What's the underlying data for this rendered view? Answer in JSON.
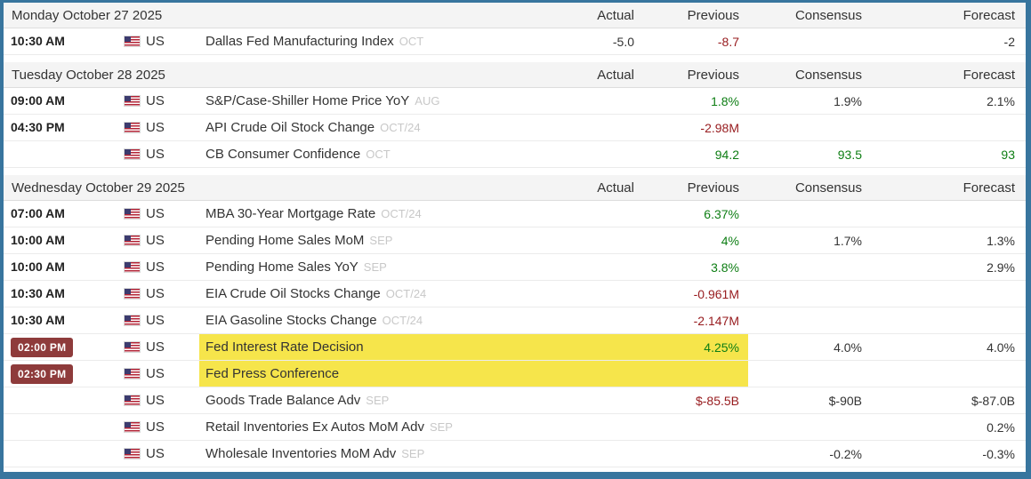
{
  "palette": {
    "border_blue": "#38759E",
    "highlight_yellow": "#F6E54B",
    "positive_green": "#0E7E14",
    "negative_red": "#971B1E",
    "time_badge_maroon": "#8E3B3B",
    "day_header_bg": "#F4F4F4"
  },
  "icons": {
    "country_flag": "us-flag-icon"
  },
  "columns": {
    "actual": "Actual",
    "previous": "Previous",
    "consensus": "Consensus",
    "forecast": "Forecast"
  },
  "days": [
    {
      "date": "Monday October 27 2025",
      "events": [
        {
          "time": "10:30 AM",
          "country": "US",
          "event": "Dallas Fed Manufacturing Index",
          "period": "OCT",
          "actual": "-5.0",
          "previous": "-8.7",
          "consensus": "",
          "forecast": "-2"
        }
      ]
    },
    {
      "date": "Tuesday October 28 2025",
      "events": [
        {
          "time": "09:00 AM",
          "country": "US",
          "event": "S&P/Case-Shiller Home Price YoY",
          "period": "AUG",
          "actual": "",
          "previous": "1.8%",
          "consensus": "1.9%",
          "forecast": "2.1%"
        },
        {
          "time": "04:30 PM",
          "country": "US",
          "event": "API Crude Oil Stock Change",
          "period": "OCT/24",
          "actual": "",
          "previous": "-2.98M",
          "consensus": "",
          "forecast": ""
        },
        {
          "time": "",
          "country": "US",
          "event": "CB Consumer Confidence",
          "period": "OCT",
          "actual": "",
          "previous": "94.2",
          "consensus": "93.5",
          "forecast": "93"
        }
      ]
    },
    {
      "date": "Wednesday October 29 2025",
      "events": [
        {
          "time": "07:00 AM",
          "country": "US",
          "event": "MBA 30-Year Mortgage Rate",
          "period": "OCT/24",
          "actual": "",
          "previous": "6.37%",
          "consensus": "",
          "forecast": ""
        },
        {
          "time": "10:00 AM",
          "country": "US",
          "event": "Pending Home Sales MoM",
          "period": "SEP",
          "actual": "",
          "previous": "4%",
          "consensus": "1.7%",
          "forecast": "1.3%"
        },
        {
          "time": "10:00 AM",
          "country": "US",
          "event": "Pending Home Sales YoY",
          "period": "SEP",
          "actual": "",
          "previous": "3.8%",
          "consensus": "",
          "forecast": "2.9%"
        },
        {
          "time": "10:30 AM",
          "country": "US",
          "event": "EIA Crude Oil Stocks Change",
          "period": "OCT/24",
          "actual": "",
          "previous": "-0.961M",
          "consensus": "",
          "forecast": ""
        },
        {
          "time": "10:30 AM",
          "country": "US",
          "event": "EIA Gasoline Stocks Change",
          "period": "OCT/24",
          "actual": "",
          "previous": "-2.147M",
          "consensus": "",
          "forecast": ""
        },
        {
          "time": "02:00 PM",
          "country": "US",
          "event": "Fed Interest Rate Decision",
          "period": "",
          "actual": "",
          "previous": "4.25%",
          "consensus": "4.0%",
          "forecast": "4.0%"
        },
        {
          "time": "02:30 PM",
          "country": "US",
          "event": "Fed Press Conference",
          "period": "",
          "actual": "",
          "previous": "",
          "consensus": "",
          "forecast": ""
        },
        {
          "time": "",
          "country": "US",
          "event": "Goods Trade Balance Adv",
          "period": "SEP",
          "actual": "",
          "previous": "$-85.5B",
          "consensus": "$-90B",
          "forecast": "$-87.0B"
        },
        {
          "time": "",
          "country": "US",
          "event": "Retail Inventories Ex Autos MoM Adv",
          "period": "SEP",
          "actual": "",
          "previous": "",
          "consensus": "",
          "forecast": "0.2%"
        },
        {
          "time": "",
          "country": "US",
          "event": "Wholesale Inventories MoM Adv",
          "period": "SEP",
          "actual": "",
          "previous": "",
          "consensus": "-0.2%",
          "forecast": "-0.3%"
        }
      ]
    }
  ]
}
